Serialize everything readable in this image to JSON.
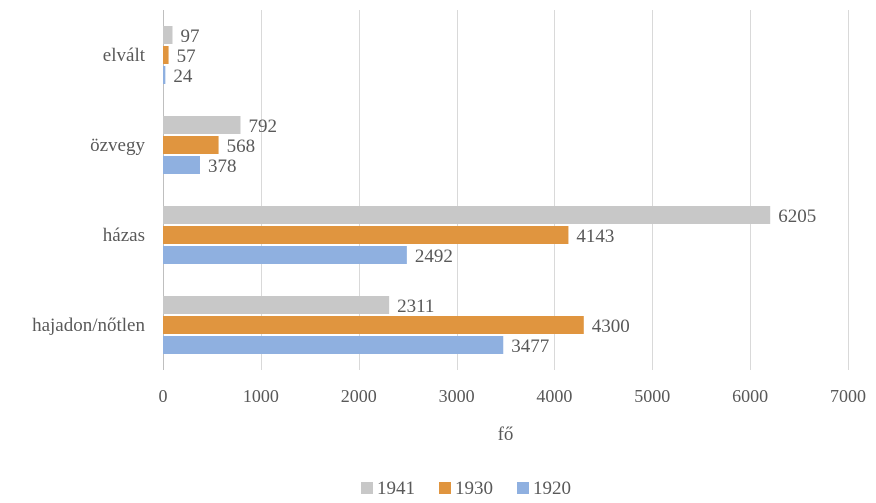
{
  "chart_data": {
    "type": "bar",
    "orientation": "horizontal",
    "title": "",
    "xlabel": "fő",
    "ylabel": "",
    "categories": [
      "hajadon/nőtlen",
      "házas",
      "özvegy",
      "elvált"
    ],
    "series": [
      {
        "name": "1941",
        "color": "#c8c8c8",
        "values": [
          2311,
          6205,
          792,
          97
        ]
      },
      {
        "name": "1930",
        "color": "#e0953f",
        "values": [
          4300,
          4143,
          568,
          57
        ]
      },
      {
        "name": "1920",
        "color": "#8fb0e0",
        "values": [
          3477,
          2492,
          378,
          24
        ]
      }
    ],
    "xlim": [
      0,
      7000
    ],
    "xticks": [
      0,
      1000,
      2000,
      3000,
      4000,
      5000,
      6000,
      7000
    ],
    "grid": true,
    "legend_position": "bottom"
  }
}
